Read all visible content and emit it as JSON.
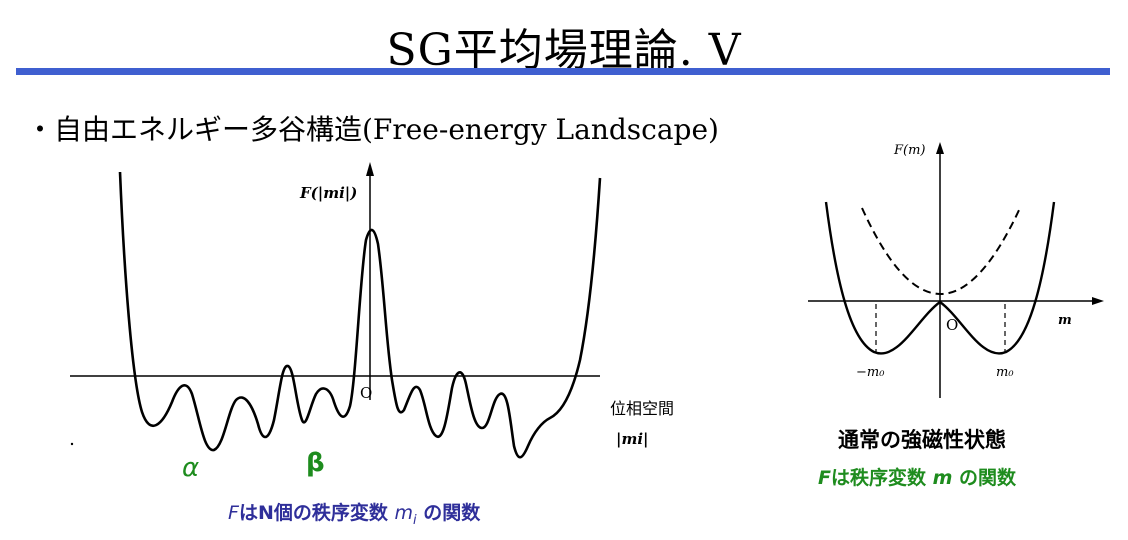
{
  "slide": {
    "title": "SG平均場理論. V",
    "accent_color": "#3f5fd0",
    "bullet": "・自由エネルギー多谷構造(Free-energy Landscape)"
  },
  "left_diagram": {
    "y_axis_label": "F(|mi|)",
    "origin_label": "O",
    "x_axis_label_line1": "位相空間",
    "x_axis_label_line2": "|mi|",
    "alpha_label": "α",
    "beta_label": "β",
    "caption_F": "F",
    "caption_main": "はN個の秩序変数 ",
    "caption_var": "m",
    "caption_sub": "i",
    "caption_tail": " の関数",
    "caption_color": "#2f2f9a",
    "greek_color": "#1e8c1e"
  },
  "right_diagram": {
    "y_axis_label": "F(m)",
    "origin_label": "O",
    "x_axis_label": "m",
    "neg_min_label": "−m₀",
    "pos_min_label": "m₀",
    "state_label": "通常の強磁性状態",
    "caption_F": "F",
    "caption_main": "は秩序変数 ",
    "caption_var": "m",
    "caption_tail": " の関数",
    "caption_color": "#1e8c1e"
  }
}
